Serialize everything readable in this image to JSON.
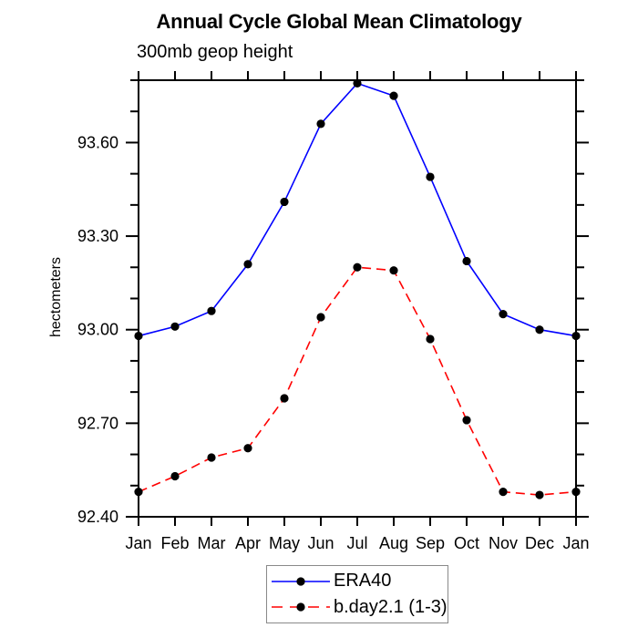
{
  "chart_data": {
    "type": "line",
    "title": "Annual Cycle Global Mean Climatology",
    "subtitle": "300mb geop height",
    "ylabel": "hectometers",
    "xlabel": "",
    "categories": [
      "Jan",
      "Feb",
      "Mar",
      "Apr",
      "May",
      "Jun",
      "Jul",
      "Aug",
      "Sep",
      "Oct",
      "Nov",
      "Dec",
      "Jan"
    ],
    "ylim": [
      92.4,
      93.8
    ],
    "yticks_major": [
      92.4,
      92.7,
      93.0,
      93.3,
      93.6
    ],
    "ytick_minor_step": 0.1,
    "ytick_label_decimals": 2,
    "grid": "off",
    "legend_position": "bottom-center",
    "series": [
      {
        "name": "ERA40",
        "line_color": "#0000ff",
        "line_style": "solid",
        "marker": "filled-circle",
        "marker_color": "#000000",
        "values": [
          92.98,
          93.01,
          93.06,
          93.21,
          93.41,
          93.66,
          93.79,
          93.75,
          93.49,
          93.22,
          93.05,
          93.0,
          92.98
        ]
      },
      {
        "name": "b.day2.1 (1-3)",
        "line_color": "#ff0000",
        "line_style": "dashed",
        "marker": "filled-circle",
        "marker_color": "#000000",
        "values": [
          92.48,
          92.53,
          92.59,
          92.62,
          92.78,
          93.04,
          93.2,
          93.19,
          92.97,
          92.71,
          92.48,
          92.47,
          92.48
        ]
      }
    ],
    "axis_color": "#000000",
    "background_color": "#ffffff"
  }
}
